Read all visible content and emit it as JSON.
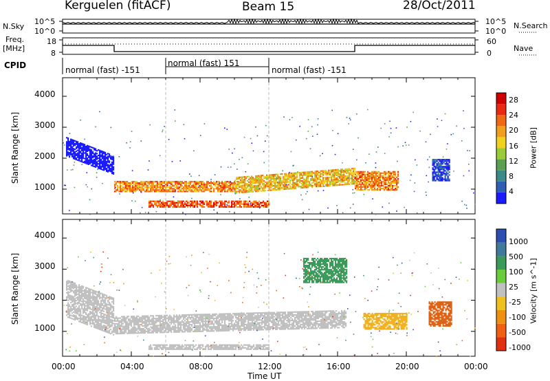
{
  "header": {
    "station": "Kerguelen (fitACF)",
    "beam": "Beam 15",
    "date": "28/Oct/2011"
  },
  "side_labels": {
    "nsky": "N.Sky",
    "freq_line1": "Freq.",
    "freq_line2": "[MHz]",
    "cpid": "CPID",
    "nsearch": "N.Search",
    "nave": "Nave"
  },
  "strip_ticks": {
    "nsky_left": [
      "10^5",
      "10^0"
    ],
    "nsky_right": [
      "10^5",
      "10^0"
    ],
    "freq_left": [
      "18",
      "8"
    ],
    "freq_right": [
      "60",
      "0"
    ]
  },
  "cpid_segments": [
    {
      "label": "normal (fast) -151",
      "start_h": 0,
      "end_h": 6
    },
    {
      "label": "normal (fast) 151",
      "start_h": 6,
      "end_h": 12
    },
    {
      "label": "normal (fast) -151",
      "start_h": 12,
      "end_h": 24
    }
  ],
  "chart_data": [
    {
      "type": "heatmap",
      "panel": "power",
      "ylabel": "Slant Range [km]",
      "xlabel": "",
      "xlim": [
        0,
        24
      ],
      "ylim": [
        200,
        4600
      ],
      "yticks": [
        "1000",
        "2000",
        "3000",
        "4000"
      ],
      "colorbar": {
        "label": "Power [dB]",
        "ticks": [
          "4",
          "8",
          "12",
          "16",
          "20",
          "24",
          "28"
        ],
        "colors": [
          "#1a1aff",
          "#2e5fb5",
          "#3a8a8a",
          "#5aa050",
          "#9acc3a",
          "#f0d21e",
          "#f0a01e",
          "#f06a14",
          "#e82a10",
          "#d00000"
        ]
      },
      "bands": [
        {
          "t0": 0.2,
          "t1": 3.0,
          "r0": 2100,
          "r1": 2700,
          "slope": -600,
          "color": "#4b8a3c"
        },
        {
          "t0": 3.0,
          "t1": 10.0,
          "r0": 950,
          "r1": 1300,
          "slope": 0,
          "color": "#f06a14"
        },
        {
          "t0": 10.0,
          "t1": 17.0,
          "r0": 900,
          "r1": 1400,
          "slope": 300,
          "color": "#f0a01e"
        },
        {
          "t0": 5.0,
          "t1": 12.0,
          "r0": 450,
          "r1": 650,
          "slope": 0,
          "color": "#e82a10"
        },
        {
          "t0": 17.0,
          "t1": 19.5,
          "r0": 1000,
          "r1": 1600,
          "slope": 0,
          "color": "#f06a14"
        },
        {
          "t0": 21.5,
          "t1": 22.5,
          "r0": 1300,
          "r1": 2000,
          "slope": 0,
          "color": "#2e5fb5"
        }
      ]
    },
    {
      "type": "heatmap",
      "panel": "velocity",
      "ylabel": "Slant Range [km]",
      "xlabel": "Time UT",
      "xlim": [
        0,
        24
      ],
      "ylim": [
        200,
        4600
      ],
      "yticks": [
        "1000",
        "2000",
        "3000",
        "4000"
      ],
      "xticks": [
        "00:00",
        "04:00",
        "08:00",
        "12:00",
        "16:00",
        "20:00",
        "00:00"
      ],
      "colorbar": {
        "label": "Velocity [m s^-1]",
        "ticks": [
          "1000",
          "500",
          "100",
          "25",
          "-25",
          "-100",
          "-500",
          "-1000"
        ],
        "colors": [
          "#2a4fb0",
          "#3f7a9a",
          "#3a9a5a",
          "#6acc3a",
          "#c0c0c0",
          "#f0c020",
          "#f09010",
          "#f06010",
          "#e03010"
        ]
      },
      "bands": [
        {
          "t0": 0.2,
          "t1": 3.0,
          "r0": 1500,
          "r1": 2700,
          "slope": -600,
          "color": "#c0c0c0"
        },
        {
          "t0": 3.0,
          "t1": 16.5,
          "r0": 950,
          "r1": 1500,
          "slope": 200,
          "color": "#c0c0c0"
        },
        {
          "t0": 5.0,
          "t1": 12.0,
          "r0": 450,
          "r1": 600,
          "slope": 0,
          "color": "#c0c0c0"
        },
        {
          "t0": 17.5,
          "t1": 20.0,
          "r0": 1100,
          "r1": 1600,
          "slope": 0,
          "color": "#f0b020"
        },
        {
          "t0": 21.3,
          "t1": 22.6,
          "r0": 1200,
          "r1": 2000,
          "slope": 0,
          "color": "#e06010"
        },
        {
          "t0": 14.0,
          "t1": 16.5,
          "r0": 2600,
          "r1": 3400,
          "slope": 0,
          "color": "#3a9a5a"
        }
      ]
    }
  ]
}
